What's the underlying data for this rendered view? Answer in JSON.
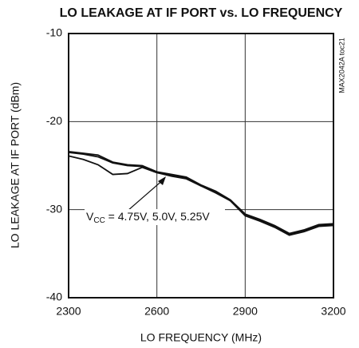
{
  "chart_data": {
    "type": "line",
    "title": "LO LEAKAGE AT IF PORT vs. LO FREQUENCY",
    "x_label": "LO FREQUENCY (MHz)",
    "y_label": "LO LEAKAGE AT IF PORT (dBm)",
    "side_note": "MAX2042A toc21",
    "annotation": {
      "text": "V",
      "subscript": "CC",
      "rest": " = 4.75V, 5.0V, 5.25V"
    },
    "x": [
      2300,
      2350,
      2400,
      2450,
      2500,
      2550,
      2600,
      2650,
      2700,
      2750,
      2800,
      2850,
      2900,
      2950,
      3000,
      3050,
      3100,
      3150,
      3200
    ],
    "series": [
      {
        "color": "#111111",
        "values": [
          -23.4,
          -23.6,
          -23.8,
          -24.6,
          -24.9,
          -25.0,
          -25.7,
          -26.0,
          -26.3,
          -27.2,
          -27.9,
          -28.9,
          -30.5,
          -31.1,
          -31.8,
          -32.7,
          -32.3,
          -31.7,
          -31.6
        ]
      },
      {
        "color": "#111111",
        "values": [
          -23.9,
          -24.3,
          -24.9,
          -26.0,
          -25.9,
          -25.2,
          -25.8,
          -26.1,
          -26.4,
          -27.3,
          -28.0,
          -29.0,
          -30.6,
          -31.2,
          -31.9,
          -32.8,
          -32.4,
          -31.8,
          -31.7
        ]
      },
      {
        "color": "#111111",
        "values": [
          -23.5,
          -23.7,
          -24.0,
          -24.7,
          -25.0,
          -25.1,
          -25.8,
          -26.2,
          -26.5,
          -27.3,
          -28.1,
          -29.0,
          -30.7,
          -31.3,
          -32.0,
          -32.9,
          -32.5,
          -31.9,
          -31.8
        ]
      }
    ],
    "xlim": [
      2300,
      3200
    ],
    "xticks": [
      2300,
      2600,
      2900,
      3200
    ],
    "ylim": [
      -40,
      -10
    ],
    "yticks": [
      -40,
      -30,
      -20,
      -10
    ],
    "grid": true
  }
}
